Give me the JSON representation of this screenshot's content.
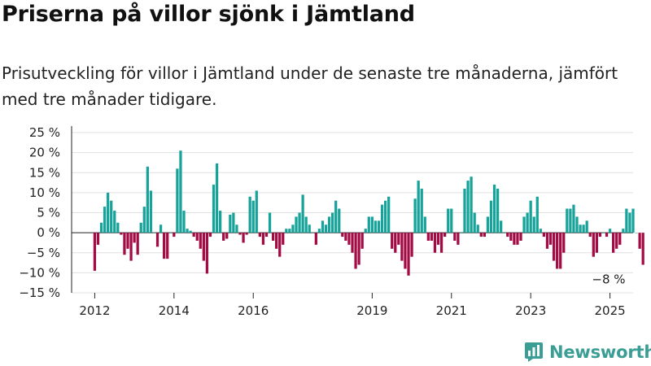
{
  "title": "Priserna på villor sjönk i Jämtland",
  "subtitle": "Prisutveckling för villor i Jämtland under de senaste tre månaderna, jämfört med tre månader tidigare.",
  "brand": {
    "name": "Newsworthy",
    "icon": "newsworthy-logo-icon"
  },
  "colors": {
    "positive": "#17a39a",
    "negative": "#a30b44",
    "grid": "#e0e0e0",
    "axis": "#222222",
    "brand": "#3b9e95"
  },
  "chart_data": {
    "type": "bar",
    "title": "",
    "xlabel": "",
    "ylabel": "",
    "y_ticks": [
      "25 %",
      "20 %",
      "15 %",
      "10 %",
      "5 %",
      "0 %",
      "−5 %",
      "−10 %",
      "−15 %"
    ],
    "y_tick_values": [
      25,
      20,
      15,
      10,
      5,
      0,
      -5,
      -10,
      -15
    ],
    "ylim": [
      -15,
      25
    ],
    "xlim": [
      "2011-06",
      "2025-08"
    ],
    "x_ticks": [
      "2012",
      "2014",
      "2016",
      "2019",
      "2021",
      "2023",
      "2025"
    ],
    "x_tick_positions": [
      "2012-01",
      "2014-01",
      "2016-01",
      "2019-01",
      "2021-01",
      "2023-01",
      "2025-01"
    ],
    "grid": true,
    "last_value_label": "−8 %",
    "series": [
      {
        "frequency": "monthly",
        "start": "2012-01",
        "values": [
          -9.5,
          -3,
          2.5,
          6.5,
          10,
          8,
          5.5,
          2.5,
          -0.5,
          -5.5,
          -4,
          -7,
          -2.5,
          -5.5,
          2.5,
          6.5,
          16.5,
          10.5,
          0,
          -3.5,
          2,
          -6.5,
          -6.5,
          0,
          -1,
          16,
          20.5,
          5.5,
          1,
          0.5,
          -1,
          -2,
          -4,
          -7,
          -10.2,
          -1,
          12,
          17.3,
          5.5,
          -2,
          -1.5,
          4.5,
          5,
          2,
          -0.5,
          -2.5,
          -0.5,
          9,
          8,
          10.5,
          -1,
          -3,
          -1,
          5,
          -2,
          -4,
          -6,
          -3,
          1,
          1,
          2,
          4,
          5,
          9.5,
          4,
          2,
          0,
          -3,
          1,
          3,
          2,
          4,
          5,
          8,
          6,
          -1,
          -2,
          -3,
          -5,
          -9,
          -8,
          -4,
          1,
          4,
          4,
          3,
          3,
          7,
          8,
          9,
          -4,
          -5,
          -3,
          -7,
          -9,
          -10.7,
          -6,
          8.5,
          13,
          11,
          4,
          -2,
          -2,
          -5,
          -3,
          -5,
          -1,
          6,
          6,
          -2,
          -3,
          0,
          11,
          13,
          14,
          5,
          2,
          -1,
          -1,
          4,
          8,
          12,
          11,
          3,
          0,
          -1,
          -2,
          -3,
          -3,
          -2,
          4,
          5,
          8,
          4,
          9,
          1,
          -1,
          -4,
          -3,
          -7,
          -9,
          -9,
          -5,
          6,
          6,
          7,
          4,
          2,
          2,
          3,
          -1,
          -6,
          -5,
          -1,
          0,
          -1,
          1,
          -5,
          -4,
          -3,
          1,
          6,
          5,
          6,
          0,
          -4,
          -8
        ]
      }
    ]
  }
}
